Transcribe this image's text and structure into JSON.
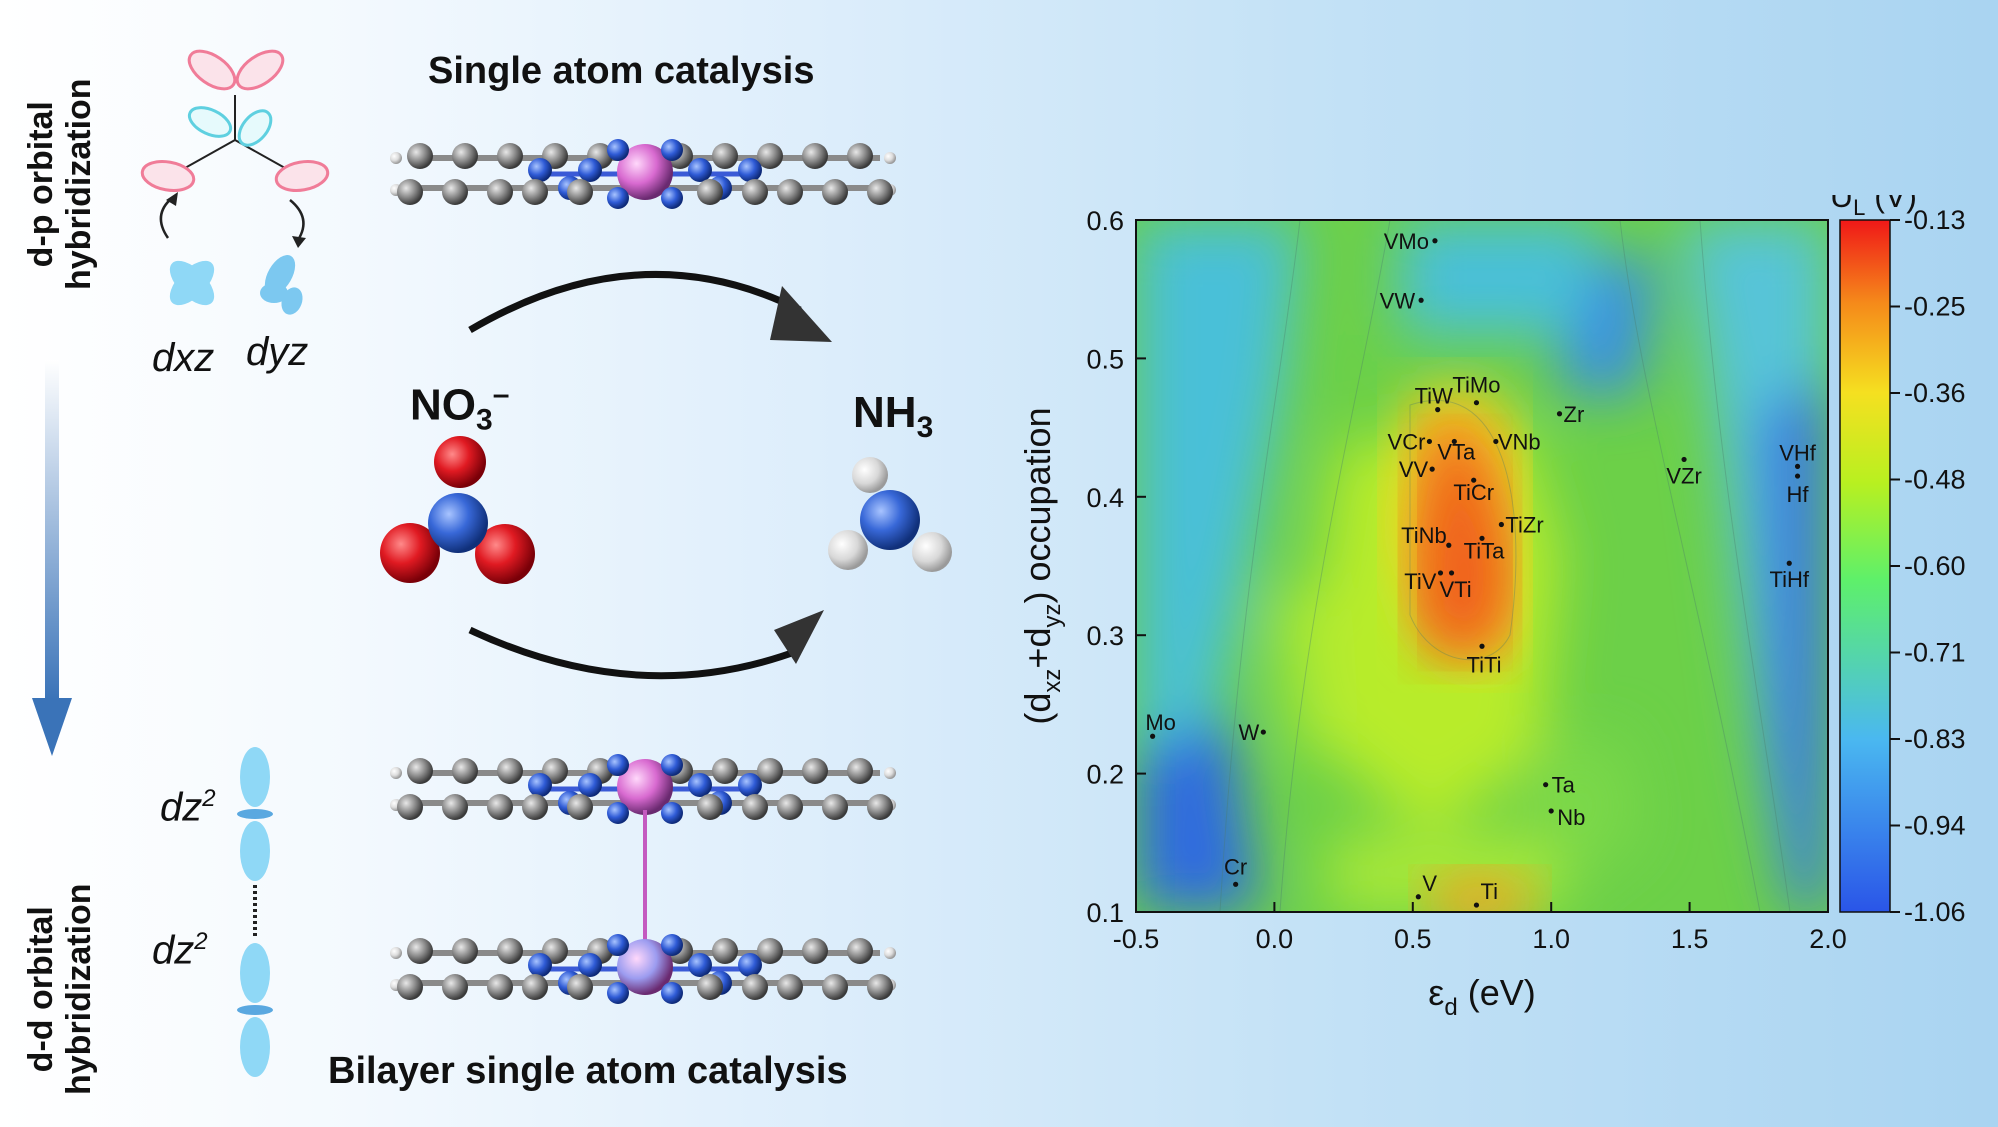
{
  "left_panel": {
    "top_label_line1": "d-p orbital",
    "top_label_line2": "hybridization",
    "bottom_label_line1": "d-d orbital",
    "bottom_label_line2": "hybridization",
    "orbital_dxz": "dxz",
    "orbital_dyz": "dyz",
    "orbital_dz2_top": "dz",
    "orbital_dz2_bottom": "dz",
    "superscript": "2"
  },
  "middle_panel": {
    "single_title": "Single atom catalysis",
    "bilayer_title": "Bilayer single atom catalysis",
    "reactant_main": "NO",
    "reactant_sub": "3",
    "reactant_sup": "–",
    "product_main": "NH",
    "product_sub": "3"
  },
  "colors": {
    "nitrogen": "#2f5bd6",
    "carbon": "#8a8a8a",
    "metal_top": "#d86ad0",
    "metal_bottom": "#9c9cf0",
    "oxygen": "#d8141e",
    "orbital_pink": "#f07c98",
    "orbital_cyan": "#5fd0e0",
    "orbital_blue": "#7cc8f0"
  },
  "chart_data": {
    "type": "heatmap",
    "xlabel_main": "ε",
    "xlabel_sub": "d",
    "xlabel_unit": " (eV)",
    "ylabel_pre": "(d",
    "ylabel_sub1": "xz",
    "ylabel_mid": "+d",
    "ylabel_sub2": "yz",
    "ylabel_post": ") occupation",
    "xlim": [
      -0.5,
      2.0
    ],
    "ylim": [
      0.1,
      0.6
    ],
    "xticks": [
      "-0.5",
      "0.0",
      "0.5",
      "1.0",
      "1.5",
      "2.0"
    ],
    "yticks": [
      "0.1",
      "0.2",
      "0.3",
      "0.4",
      "0.5",
      "0.6"
    ],
    "colorbar_title_main": "U",
    "colorbar_title_sub": "L",
    "colorbar_title_unit": " (V)",
    "colorbar_ticks": [
      "-0.13",
      "-0.25",
      "-0.36",
      "-0.48",
      "-0.60",
      "-0.71",
      "-0.83",
      "-0.94",
      "-1.06"
    ],
    "colorbar_range": [
      -1.06,
      -0.13
    ],
    "points": [
      {
        "label": "VMo",
        "x": 0.58,
        "y": 0.585
      },
      {
        "label": "VW",
        "x": 0.53,
        "y": 0.542
      },
      {
        "label": "TiW",
        "x": 0.59,
        "y": 0.463
      },
      {
        "label": "TiMo",
        "x": 0.73,
        "y": 0.468
      },
      {
        "label": "Zr",
        "x": 1.03,
        "y": 0.46
      },
      {
        "label": "VCr",
        "x": 0.56,
        "y": 0.44
      },
      {
        "label": "VTa",
        "x": 0.65,
        "y": 0.44
      },
      {
        "label": "VNb",
        "x": 0.8,
        "y": 0.44
      },
      {
        "label": "VV",
        "x": 0.57,
        "y": 0.42
      },
      {
        "label": "TiCr",
        "x": 0.72,
        "y": 0.412
      },
      {
        "label": "VZr",
        "x": 1.48,
        "y": 0.427
      },
      {
        "label": "VHf",
        "x": 1.89,
        "y": 0.422
      },
      {
        "label": "Hf",
        "x": 1.89,
        "y": 0.415
      },
      {
        "label": "TiNb",
        "x": 0.63,
        "y": 0.365
      },
      {
        "label": "TiZr",
        "x": 0.82,
        "y": 0.38
      },
      {
        "label": "TiTa",
        "x": 0.75,
        "y": 0.37
      },
      {
        "label": "TiHf",
        "x": 1.86,
        "y": 0.352
      },
      {
        "label": "TiV",
        "x": 0.6,
        "y": 0.345
      },
      {
        "label": "VTi",
        "x": 0.64,
        "y": 0.345
      },
      {
        "label": "TiTi",
        "x": 0.75,
        "y": 0.292
      },
      {
        "label": "Mo",
        "x": -0.44,
        "y": 0.227
      },
      {
        "label": "W",
        "x": -0.04,
        "y": 0.23
      },
      {
        "label": "Ta",
        "x": 0.98,
        "y": 0.192
      },
      {
        "label": "Nb",
        "x": 1.0,
        "y": 0.173
      },
      {
        "label": "Cr",
        "x": -0.14,
        "y": 0.12
      },
      {
        "label": "V",
        "x": 0.52,
        "y": 0.111
      },
      {
        "label": "Ti",
        "x": 0.73,
        "y": 0.105
      }
    ]
  }
}
